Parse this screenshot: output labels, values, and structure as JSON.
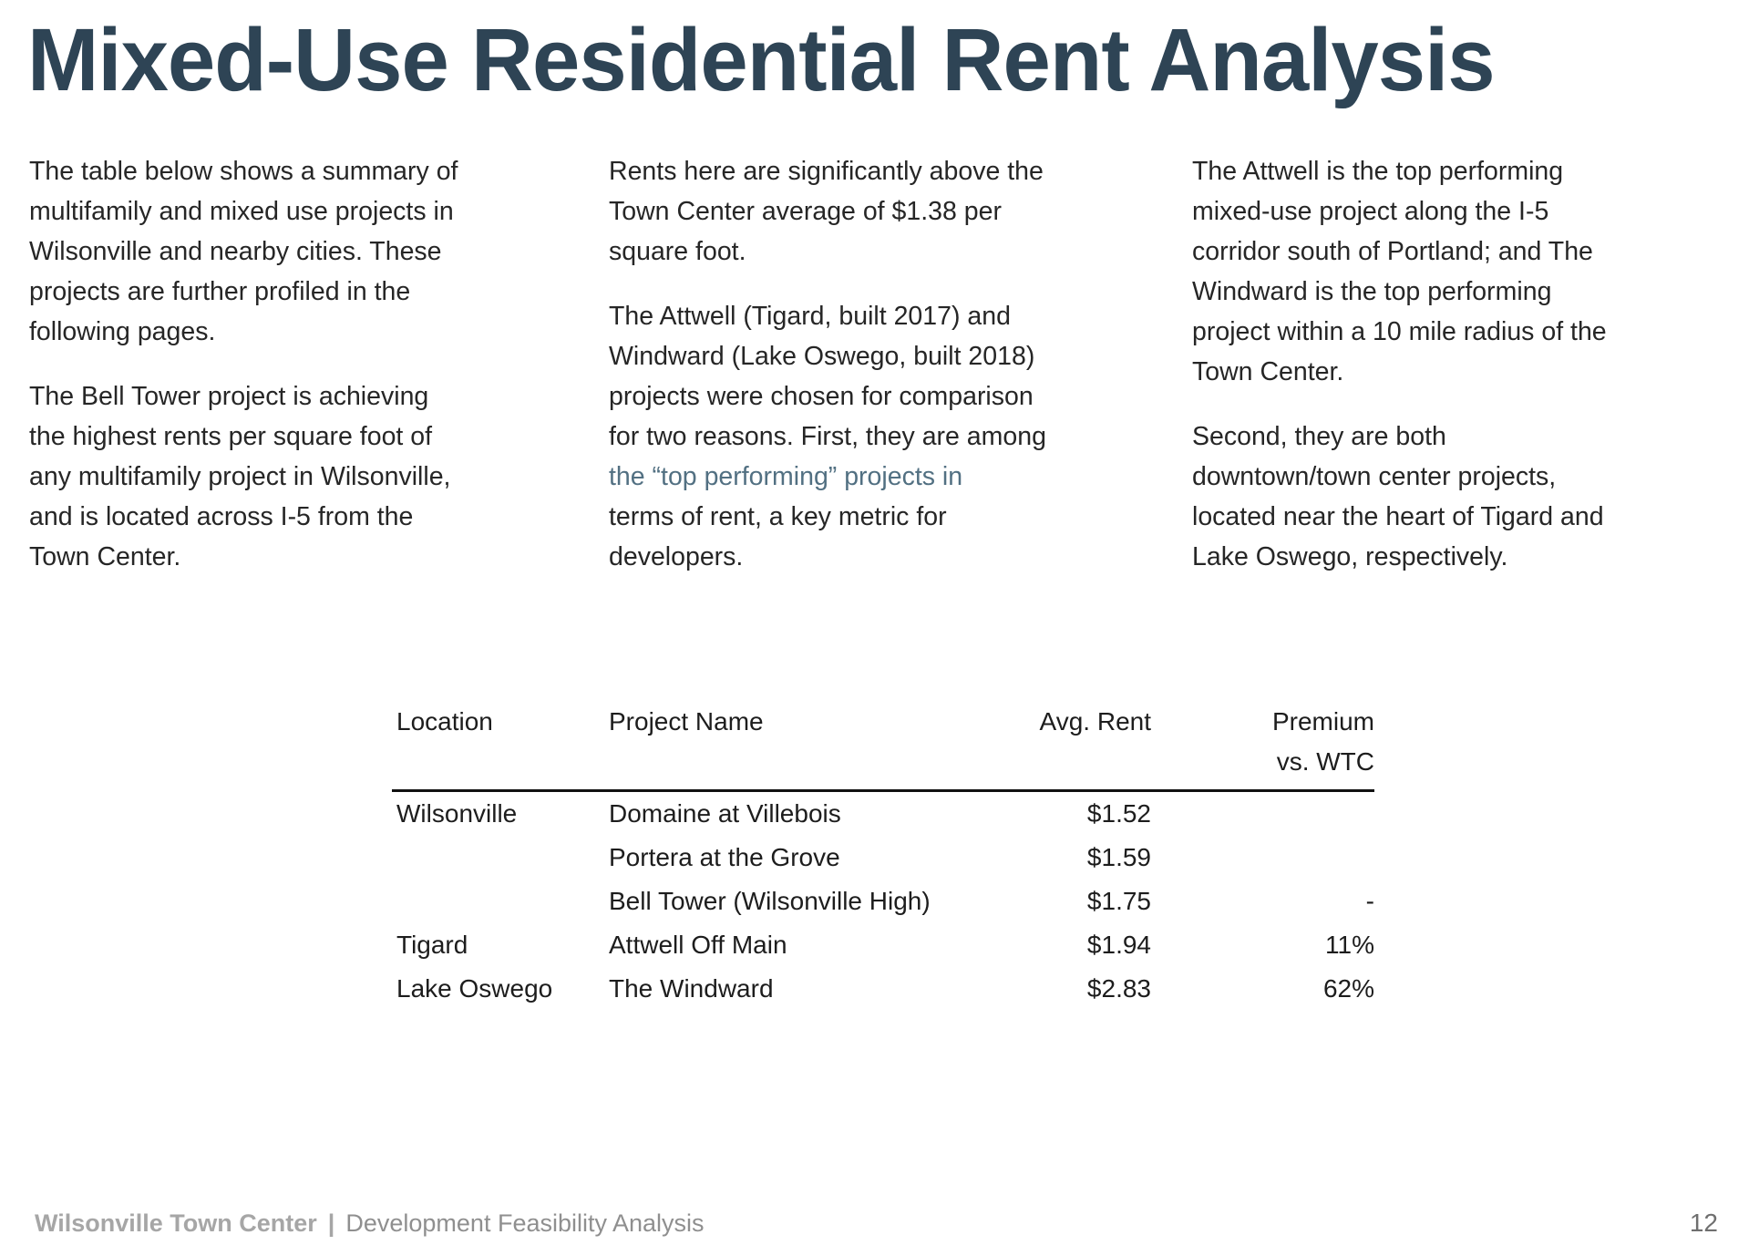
{
  "title": "Mixed-Use Residential Rent Analysis",
  "colors": {
    "title": "#2e4455",
    "body_text": "#262626",
    "highlight_text": "#527082",
    "table_rule": "#111111",
    "footer_brand_gray": "#a6a6a6",
    "footer_subtitle_gray": "#8f8f8f",
    "page_number_gray": "#6f6f6f"
  },
  "body": {
    "col1": {
      "p1": "The table below shows a summary of\nmultifamily and mixed use projects in\nWilsonville and nearby cities. These\nprojects are further profiled in the\nfollowing pages.",
      "p2": "The Bell Tower project is achieving\nthe highest rents per square foot of\nany multifamily project in Wilsonville,\nand is located across I-5 from the\nTown Center."
    },
    "col2": {
      "p1": "Rents here are significantly above the\nTown Center average of $1.38 per\nsquare foot.",
      "p2_before": "The Attwell (Tigard, built 2017) and\nWindward (Lake Oswego, built 2018)\nprojects were chosen for comparison\nfor two reasons. First, they are among\n",
      "p2_highlight": "the “top performing” projects in",
      "p2_after": "\nterms of rent, a key metric for\ndevelopers."
    },
    "col3": {
      "p1": "The Attwell is the top performing\nmixed-use project along the I-5\ncorridor south of Portland; and The\nWindward is the top performing\nproject within a 10 mile radius of the\nTown Center.",
      "p2": "Second, they are both\ndowntown/town center projects,\nlocated near the heart of Tigard and\nLake Oswego, respectively."
    }
  },
  "table": {
    "headers": {
      "location": "Location",
      "project": "Project Name",
      "rent": "Avg. Rent",
      "premium": "Premium\nvs. WTC"
    },
    "rows": [
      {
        "location": "Wilsonville",
        "project": "Domaine at Villebois",
        "rent": "$1.52",
        "premium": ""
      },
      {
        "location": "",
        "project": "Portera at the Grove",
        "rent": "$1.59",
        "premium": ""
      },
      {
        "location": "",
        "project": "Bell Tower (Wilsonville High)",
        "rent": "$1.75",
        "premium": "-"
      },
      {
        "location": "Tigard",
        "project": "Attwell Off Main",
        "rent": "$1.94",
        "premium": "11%"
      },
      {
        "location": "Lake Oswego",
        "project": "The Windward",
        "rent": "$2.83",
        "premium": "62%"
      }
    ]
  },
  "footer": {
    "brand": "Wilsonville Town Center",
    "separator": "|",
    "subtitle": "Development Feasibility Analysis",
    "page_number": "12"
  }
}
